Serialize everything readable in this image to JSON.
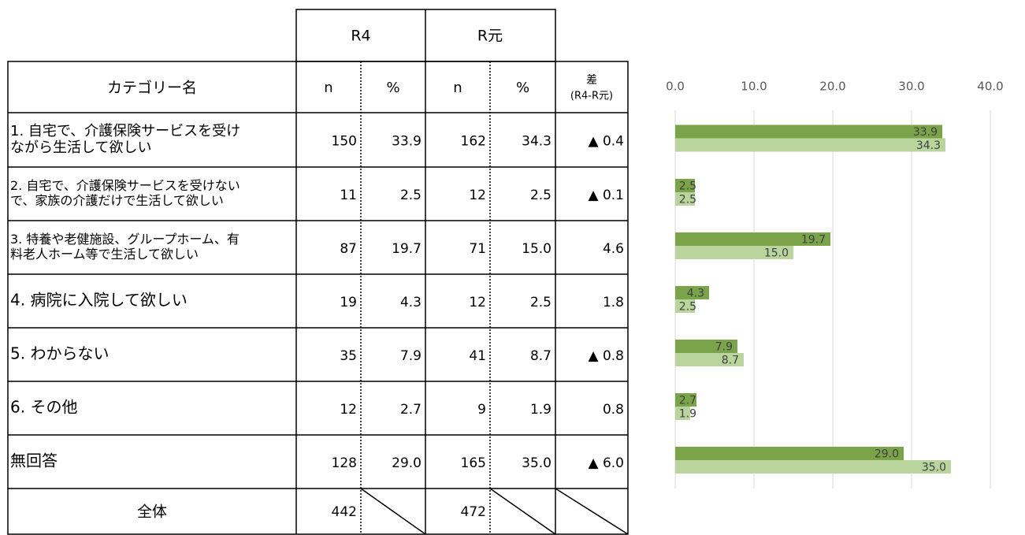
{
  "table": {
    "group_headers": [
      "R4",
      "R元"
    ],
    "headers": [
      "カテゴリー名",
      "n",
      "%",
      "n",
      "%"
    ],
    "diff_header": [
      "差",
      "(R4-R元)"
    ],
    "rows": [
      {
        "label": [
          "1. 自宅で、介護保険サービスを受け",
          "ながら生活して欲しい"
        ],
        "cells": [
          "150",
          "33.9",
          "162",
          "34.3",
          "▲ 0.4"
        ]
      },
      {
        "label": [
          "2. 自宅で、介護保険サービスを受けない",
          "で、家族の介護だけで生活して欲しい"
        ],
        "cells": [
          "11",
          "2.5",
          "12",
          "2.5",
          "▲ 0.1"
        ]
      },
      {
        "label": [
          "3. 特養や老健施設、グループホーム、有",
          "料老人ホーム等で生活して欲しい"
        ],
        "cells": [
          "87",
          "19.7",
          "71",
          "15.0",
          "4.6"
        ]
      },
      {
        "label": [
          "4. 病院に入院して欲しい"
        ],
        "cells": [
          "19",
          "4.3",
          "12",
          "2.5",
          "1.8"
        ]
      },
      {
        "label": [
          "5. わからない"
        ],
        "cells": [
          "35",
          "7.9",
          "41",
          "8.7",
          "▲ 0.8"
        ]
      },
      {
        "label": [
          "6. その他"
        ],
        "cells": [
          "12",
          "2.7",
          "9",
          "1.9",
          "0.8"
        ]
      },
      {
        "label": [
          "無回答"
        ],
        "cells": [
          "128",
          "29.0",
          "165",
          "35.0",
          "▲ 6.0"
        ]
      }
    ],
    "total": {
      "label": "全体",
      "n1": "442",
      "n2": "472"
    }
  },
  "chart_data": {
    "type": "bar",
    "orientation": "horizontal",
    "categories": [
      null,
      null,
      null,
      null,
      null,
      null,
      null
    ],
    "series": [
      {
        "color": "#7ba34a",
        "values": [
          33.9,
          2.5,
          19.7,
          4.3,
          7.9,
          2.7,
          29.0
        ],
        "value_labels": [
          "33.9",
          "2.5",
          "19.7",
          "4.3",
          "7.9",
          "2.7",
          "29.0"
        ]
      },
      {
        "color": "#b9d49c",
        "values": [
          34.3,
          2.5,
          15.0,
          2.5,
          8.7,
          1.9,
          35.0
        ],
        "value_labels": [
          "34.3",
          "2.5",
          "15.0",
          "2.5",
          "8.7",
          "1.9",
          "35.0"
        ]
      }
    ],
    "xlim": [
      0,
      40
    ],
    "xticks": [
      {
        "value": 0,
        "label": "0.0"
      },
      {
        "value": 10,
        "label": "10.0"
      },
      {
        "value": 20,
        "label": "20.0"
      },
      {
        "value": 30,
        "label": "30.0"
      },
      {
        "value": 40,
        "label": "40.0"
      }
    ],
    "grid": true
  }
}
